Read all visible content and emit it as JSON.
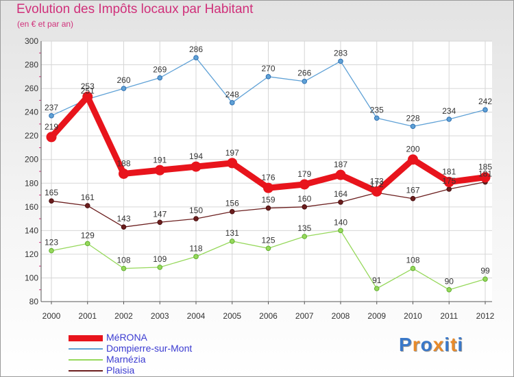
{
  "header": {
    "title": "Evolution des Impôts locaux par Habitant",
    "subtitle": "(en € et par an)"
  },
  "brand": {
    "text": "Proxiti",
    "letter_colors": [
      "#3a78c9",
      "#e88a2a",
      "#3a78c9",
      "#e88a2a",
      "#3a78c9",
      "#e88a2a",
      "#3a78c9"
    ]
  },
  "chart_data": {
    "type": "line",
    "x": [
      "2000",
      "2001",
      "2002",
      "2003",
      "2004",
      "2005",
      "2006",
      "2007",
      "2008",
      "2009",
      "2010",
      "2011",
      "2012"
    ],
    "ylim": [
      80,
      300
    ],
    "yticks": [
      "80",
      "100",
      "120",
      "140",
      "160",
      "180",
      "200",
      "220",
      "240",
      "260",
      "280",
      "300"
    ],
    "grid": true,
    "legend_position": "bottom-left",
    "series": [
      {
        "name": "MéRONA",
        "color": "#e8141c",
        "values": [
          219,
          253,
          188,
          191,
          194,
          197,
          176,
          179,
          187,
          173,
          200,
          181,
          185
        ]
      },
      {
        "name": "Dompierre-sur-Mont",
        "color": "#5fa1d6",
        "values": [
          237,
          251,
          260,
          269,
          286,
          248,
          270,
          266,
          283,
          235,
          228,
          234,
          242
        ]
      },
      {
        "name": "Marnézia",
        "color": "#96d85b",
        "values": [
          123,
          129,
          108,
          109,
          118,
          131,
          125,
          135,
          140,
          91,
          108,
          90,
          99
        ]
      },
      {
        "name": "Plaisia",
        "color": "#6b1e1e",
        "values": [
          165,
          161,
          143,
          147,
          150,
          156,
          159,
          160,
          164,
          172,
          167,
          175,
          181
        ]
      }
    ]
  }
}
